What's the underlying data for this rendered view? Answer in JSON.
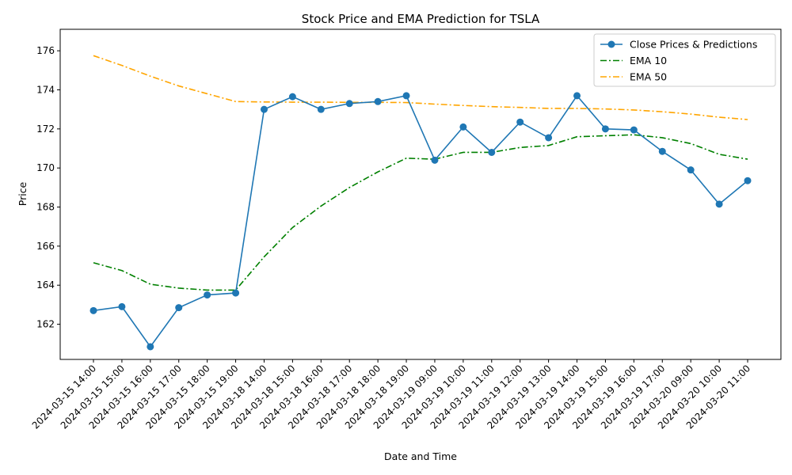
{
  "chart_data": {
    "type": "line",
    "title": "Stock Price and EMA Prediction for TSLA",
    "xlabel": "Date and Time",
    "ylabel": "Price",
    "ylim": [
      160.2,
      177.1
    ],
    "yticks": [
      162,
      164,
      166,
      168,
      170,
      172,
      174,
      176
    ],
    "grid": false,
    "legend_position": "top-right",
    "categories": [
      "2024-03-15 14:00",
      "2024-03-15 15:00",
      "2024-03-15 16:00",
      "2024-03-15 17:00",
      "2024-03-15 18:00",
      "2024-03-15 19:00",
      "2024-03-18 14:00",
      "2024-03-18 15:00",
      "2024-03-18 16:00",
      "2024-03-18 17:00",
      "2024-03-18 18:00",
      "2024-03-18 19:00",
      "2024-03-19 09:00",
      "2024-03-19 10:00",
      "2024-03-19 11:00",
      "2024-03-19 12:00",
      "2024-03-19 13:00",
      "2024-03-19 14:00",
      "2024-03-19 15:00",
      "2024-03-19 16:00",
      "2024-03-19 17:00",
      "2024-03-20 09:00",
      "2024-03-20 10:00",
      "2024-03-20 11:00"
    ],
    "series": [
      {
        "name": "Close Prices & Predictions",
        "color": "#1f77b4",
        "style": "solid-marker",
        "values": [
          162.7,
          162.9,
          160.85,
          162.85,
          163.5,
          163.6,
          173.0,
          173.65,
          173.0,
          173.3,
          173.4,
          173.7,
          170.4,
          172.1,
          170.8,
          172.35,
          171.55,
          173.7,
          172.0,
          171.95,
          170.85,
          169.9,
          168.15,
          169.35
        ]
      },
      {
        "name": "EMA 10",
        "color": "#008000",
        "style": "dashdot",
        "values": [
          165.15,
          164.75,
          164.05,
          163.85,
          163.75,
          163.75,
          165.45,
          166.95,
          168.05,
          169.0,
          169.8,
          170.5,
          170.45,
          170.8,
          170.8,
          171.05,
          171.15,
          171.6,
          171.65,
          171.7,
          171.55,
          171.25,
          170.7,
          170.45
        ]
      },
      {
        "name": "EMA 50",
        "color": "#ffa500",
        "style": "dashdot",
        "values": [
          175.75,
          175.25,
          174.7,
          174.2,
          173.8,
          173.4,
          173.38,
          173.37,
          173.37,
          173.36,
          173.36,
          173.35,
          173.27,
          173.2,
          173.14,
          173.1,
          173.05,
          173.05,
          173.02,
          172.97,
          172.88,
          172.76,
          172.6,
          172.48
        ]
      }
    ]
  }
}
